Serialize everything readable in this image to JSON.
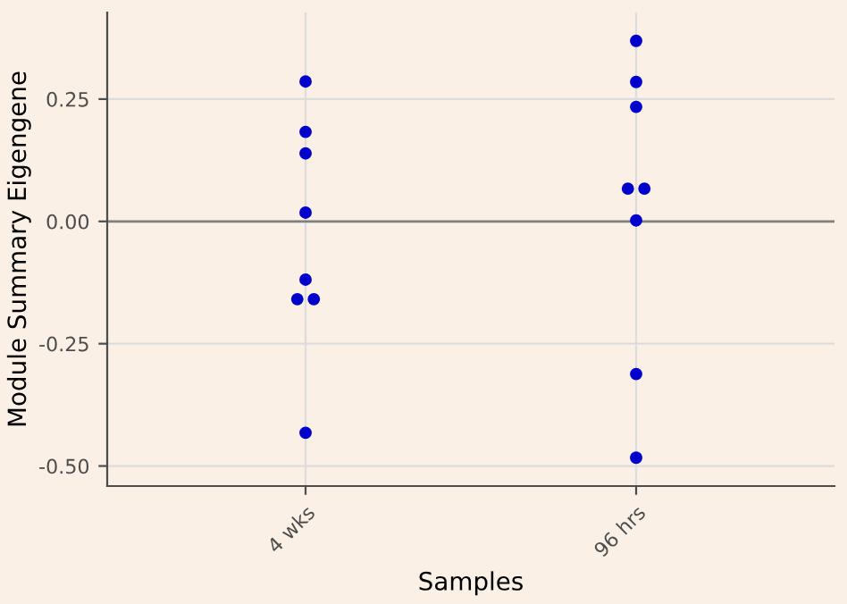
{
  "chart_data": {
    "type": "scatter",
    "xlabel": "Samples",
    "ylabel": "Module Summary Eigengene",
    "categories": [
      "4 wks",
      "96 hrs"
    ],
    "series": [
      {
        "color": "#0000cc",
        "x": [
          "4 wks",
          "4 wks",
          "4 wks",
          "4 wks",
          "4 wks",
          "4 wks",
          "4 wks",
          "4 wks"
        ],
        "values": [
          0.286,
          0.183,
          0.139,
          0.018,
          -0.119,
          -0.159,
          -0.159,
          -0.432
        ]
      },
      {
        "color": "#0000cc",
        "x": [
          "96 hrs",
          "96 hrs",
          "96 hrs",
          "96 hrs",
          "96 hrs",
          "96 hrs",
          "96 hrs",
          "96 hrs"
        ],
        "values": [
          0.369,
          0.285,
          0.234,
          0.067,
          0.067,
          0.002,
          -0.312,
          -0.483
        ]
      }
    ],
    "ylim": [
      -0.541,
      0.427
    ],
    "yticks": [
      {
        "value": -0.5,
        "label": "-0.50"
      },
      {
        "value": -0.25,
        "label": "-0.25"
      },
      {
        "value": 0,
        "label": "0.00"
      },
      {
        "value": 0.25,
        "label": "0.25"
      }
    ],
    "ref_lines": [
      {
        "axis": "y",
        "value": 0,
        "color": "#808080"
      }
    ],
    "grid": true,
    "marker": "circle"
  }
}
